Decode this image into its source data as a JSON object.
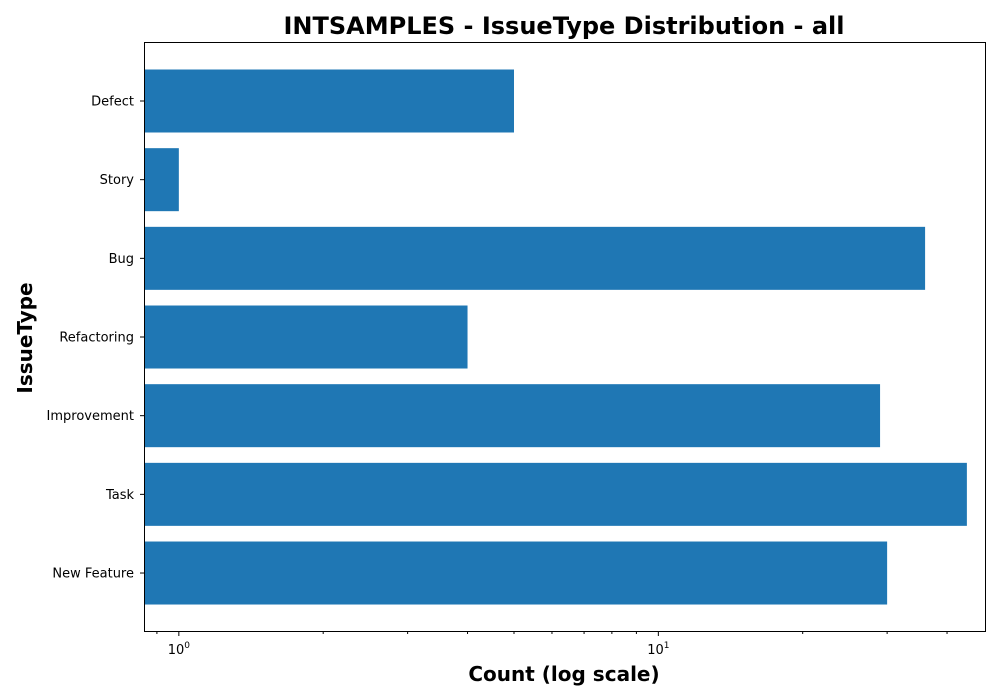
{
  "chart_data": {
    "type": "bar",
    "orientation": "horizontal",
    "title": "INTSAMPLES - IssueType Distribution - all",
    "xlabel": "Count (log scale)",
    "ylabel": "IssueType",
    "x_scale": "log",
    "xlim": [
      0.85,
      48
    ],
    "categories": [
      "Defect",
      "Story",
      "Bug",
      "Refactoring",
      "Improvement",
      "Task",
      "New Feature"
    ],
    "values": [
      5,
      1,
      36,
      4,
      29,
      44,
      30
    ],
    "x_ticks": [
      {
        "value": 1,
        "base": "10",
        "exp": "0"
      },
      {
        "value": 10,
        "base": "10",
        "exp": "1"
      }
    ],
    "bar_color": "#1f77b4",
    "grid": false,
    "legend": "none"
  }
}
